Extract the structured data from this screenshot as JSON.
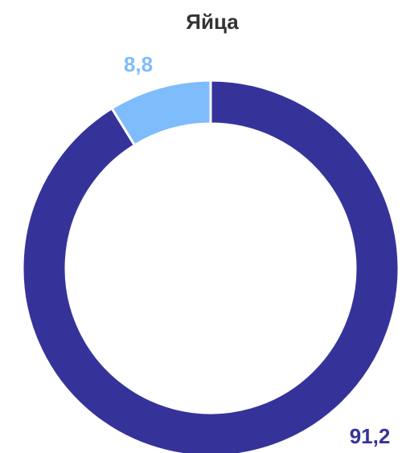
{
  "chart_data": {
    "type": "donut",
    "title": "Яйца",
    "values": [
      91.2,
      8.8
    ],
    "value_labels": [
      "91,2",
      "8,8"
    ],
    "colors": [
      "#35339a",
      "#7fbcfb"
    ]
  }
}
